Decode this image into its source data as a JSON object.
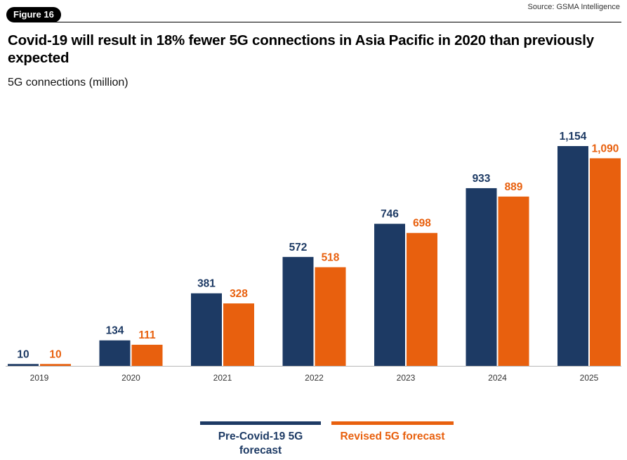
{
  "figure_tag": "Figure 16",
  "source": "Source: GSMA Intelligence",
  "colors": {
    "pre": "#1d3a64",
    "revised": "#e8600e"
  },
  "chart_data": {
    "type": "bar",
    "title": "Covid-19 will result in 18% fewer 5G connections in Asia Pacific in 2020 than previously expected",
    "subtitle": "5G connections (million)",
    "categories": [
      "2019",
      "2020",
      "2021",
      "2022",
      "2023",
      "2024",
      "2025"
    ],
    "series": [
      {
        "name": "Pre-Covid-19 5G forecast",
        "values": [
          10,
          134,
          381,
          572,
          746,
          933,
          1154
        ],
        "labels": [
          "10",
          "134",
          "381",
          "572",
          "746",
          "933",
          "1,154"
        ]
      },
      {
        "name": "Revised 5G forecast",
        "values": [
          10,
          111,
          328,
          518,
          698,
          889,
          1090
        ],
        "labels": [
          "10",
          "111",
          "328",
          "518",
          "698",
          "889",
          "1,090"
        ]
      }
    ],
    "ylim": [
      0,
      1154
    ],
    "grid": false,
    "legend_position": "bottom"
  }
}
